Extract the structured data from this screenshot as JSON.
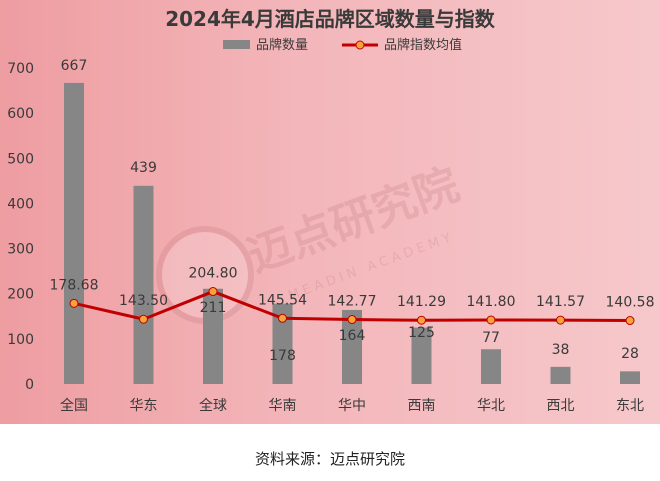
{
  "chart_data": {
    "type": "bar+line",
    "title": "2024年4月酒店品牌区域数量与指数",
    "categories": [
      "全国",
      "华东",
      "全球",
      "华南",
      "华中",
      "西南",
      "华北",
      "西北",
      "东北"
    ],
    "series": [
      {
        "name": "品牌数量",
        "type": "bar",
        "values": [
          667,
          439,
          211,
          178,
          164,
          125,
          77,
          38,
          28
        ],
        "color": "#868686"
      },
      {
        "name": "品牌指数均值",
        "type": "line",
        "values": [
          178.68,
          143.5,
          204.8,
          145.54,
          142.77,
          141.29,
          141.8,
          141.57,
          140.58
        ],
        "color": "#c00000",
        "marker_color": "#f5a33a"
      }
    ],
    "bar_labels": [
      "667",
      "439",
      "211",
      "178",
      "164",
      "125",
      "77",
      "38",
      "28"
    ],
    "line_labels": [
      "178.68",
      "143.50",
      "204.80",
      "145.54",
      "142.77",
      "141.29",
      "141.80",
      "141.57",
      "140.58"
    ],
    "yticks": [
      "0",
      "100",
      "200",
      "300",
      "400",
      "500",
      "600",
      "700"
    ],
    "ylim": [
      0,
      700
    ],
    "legend": {
      "position": "top-center",
      "items": [
        "品牌数量",
        "品牌指数均值"
      ]
    },
    "grid": false
  },
  "watermark": {
    "cn": "迈点研究院",
    "en": "MEADIN ACADEMY"
  },
  "source": "资料来源：迈点研究院"
}
